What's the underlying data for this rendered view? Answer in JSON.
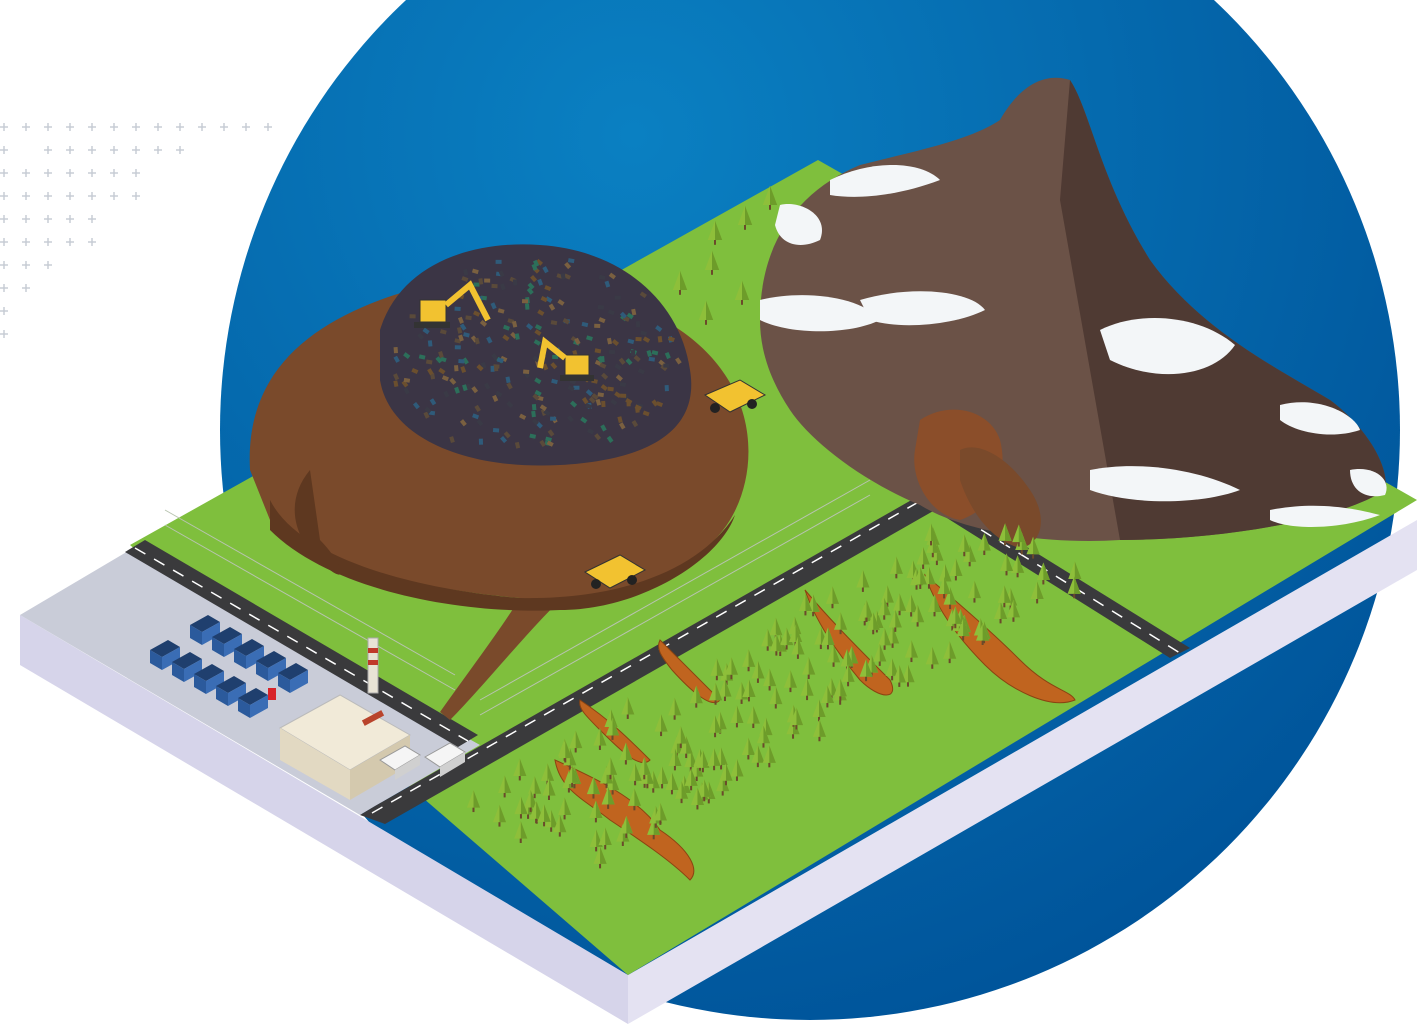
{
  "illustration": {
    "kind": "isometric landscape illustration",
    "icons": [
      "plus-grid-pattern",
      "landfill-mound",
      "excavator-icon",
      "dump-truck-icon",
      "snow-mountain",
      "pine-tree-icon",
      "erosion-crack",
      "road",
      "security-fence",
      "waste-bins",
      "recycling-plant-icon",
      "smokestack-icon",
      "garbage-truck-icon"
    ],
    "colors": {
      "background": "#ffffff",
      "circle": "#0a73b5",
      "circle_dark": "#00549a",
      "grass": "#7fbf3d",
      "grass_dark": "#6aa832",
      "slab_top": "#c9ccd8",
      "slab_side": "#d6d4ea",
      "slab_front": "#e4e2f2",
      "road": "#3a3a3c",
      "road_line": "#ffffff",
      "soil": "#7a4a2b",
      "soil_dark": "#5e3820",
      "rock": "#6b5247",
      "rock_dark": "#4f3a33",
      "snow": "#f3f6f8",
      "tree": "#8ebf3a",
      "tree_dark": "#6d9c2a",
      "crack": "#c0641f",
      "machine": "#f2c230",
      "building": "#f1ead8",
      "plus": "#c5cad3"
    }
  }
}
